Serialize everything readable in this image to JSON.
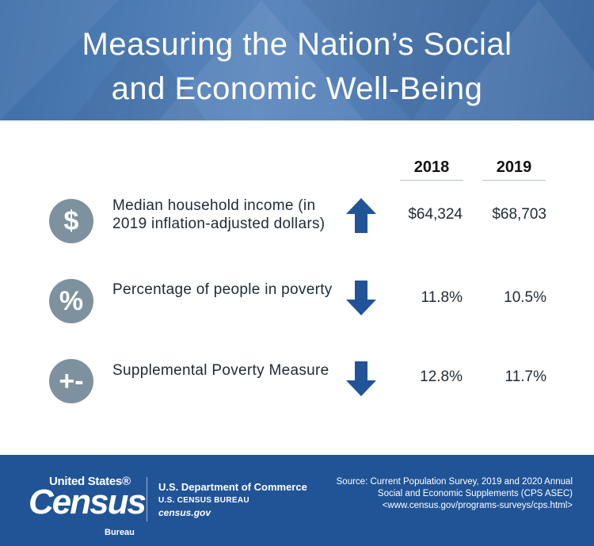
{
  "header": {
    "title_line1": "Measuring the Nation’s Social",
    "title_line2": "and Economic Well-Being"
  },
  "columns": [
    "2018",
    "2019"
  ],
  "rows": [
    {
      "icon": "dollar-icon",
      "glyph": "$",
      "label": "Median household income (in 2019 inflation-adjusted dollars)",
      "trend": "up",
      "v2018": "$64,324",
      "v2019": "$68,703"
    },
    {
      "icon": "percent-icon",
      "glyph": "%",
      "label": "Percentage of people in poverty",
      "trend": "down",
      "v2018": "11.8%",
      "v2019": "10.5%"
    },
    {
      "icon": "plus-minus-icon",
      "glyph": "+-",
      "label": "Supplemental Poverty Measure",
      "trend": "down",
      "v2018": "12.8%",
      "v2019": "11.7%"
    }
  ],
  "footer": {
    "logo_line1": "United States®",
    "logo_line2": "Census",
    "logo_line3": "Bureau",
    "dept_line1": "U.S. Department of Commerce",
    "dept_line2": "U.S. CENSUS BUREAU",
    "dept_line3": "census.gov",
    "source": "Source: Current Population Survey, 2019 and 2020 Annual Social and Economic Supplements (CPS ASEC) <www.census.gov/programs-surveys/cps.html>"
  },
  "colors": {
    "header_blue": "#4d79b0",
    "footer_blue": "#205497",
    "arrow_blue": "#205497",
    "icon_gray": "#7e919f"
  }
}
